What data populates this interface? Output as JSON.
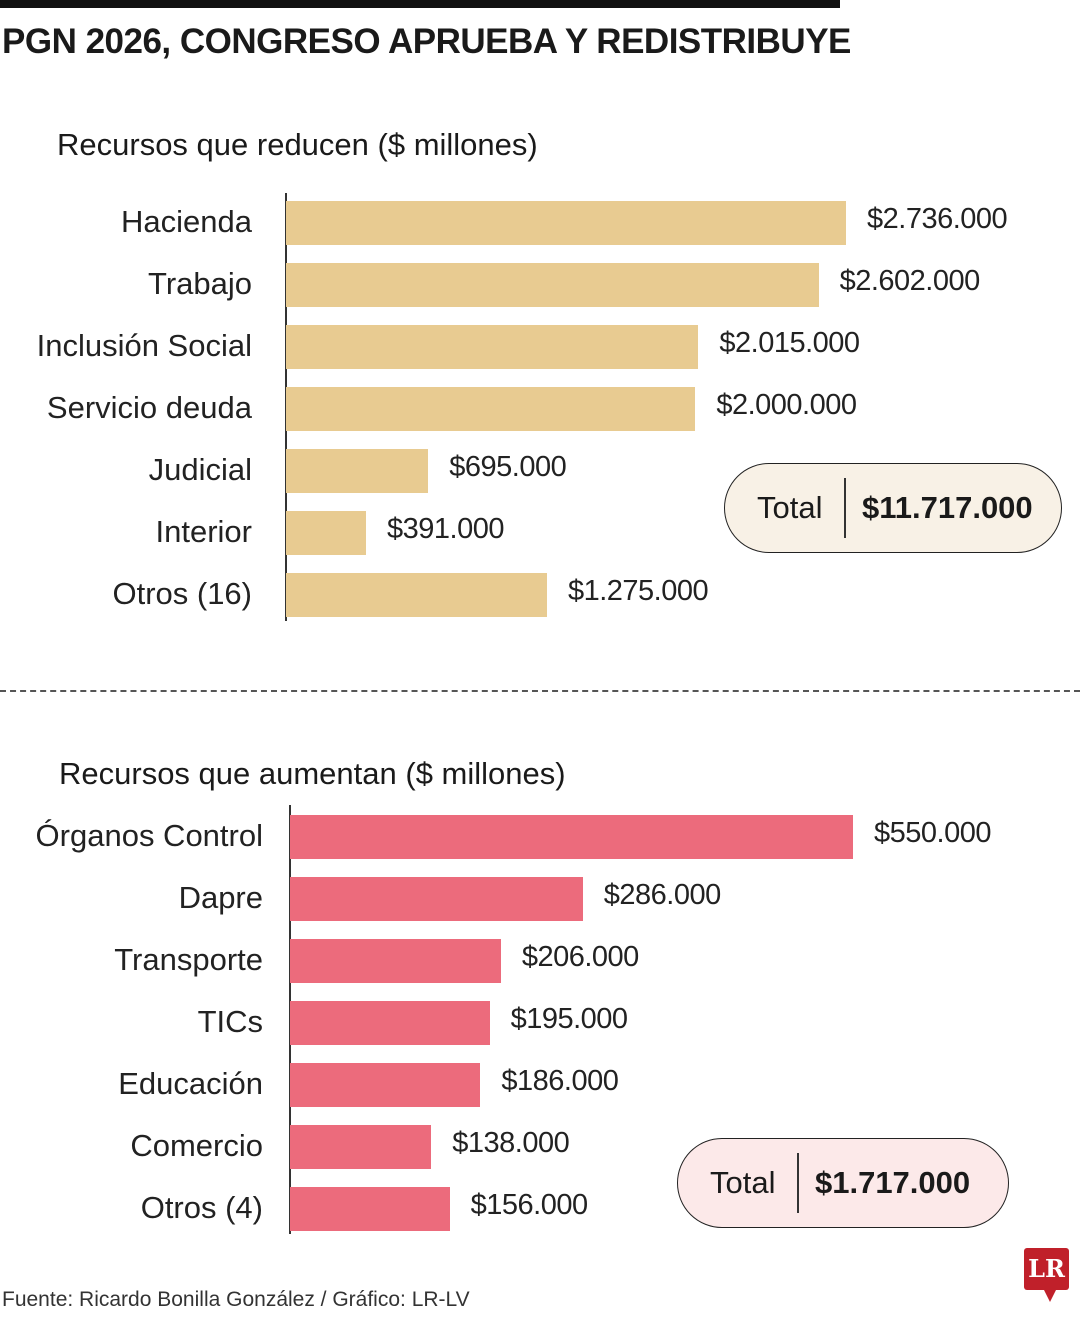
{
  "title": "PGN 2026, CONGRESO APRUEBA Y REDISTRIBUYE",
  "chart_data": [
    {
      "type": "bar",
      "orientation": "horizontal",
      "title": "Recursos que reducen ($ millones)",
      "categories": [
        "Hacienda",
        "Trabajo",
        "Inclusión Social",
        "Servicio deuda",
        "Judicial",
        "Interior",
        "Otros (16)"
      ],
      "values": [
        2736000,
        2602000,
        2015000,
        2000000,
        695000,
        391000,
        1275000
      ],
      "value_labels": [
        "$2.736.000",
        "$2.602.000",
        "$2.015.000",
        "$2.000.000",
        "$695.000",
        "$391.000",
        "$1.275.000"
      ],
      "color": "#e8cb91",
      "total_label": "Total",
      "total_value": "$11.717.000",
      "total_bg": "#f8f1e6"
    },
    {
      "type": "bar",
      "orientation": "horizontal",
      "title": "Recursos que aumentan ($ millones)",
      "categories": [
        "Órganos Control",
        "Dapre",
        "Transporte",
        "TICs",
        "Educación",
        "Comercio",
        "Otros (4)"
      ],
      "values": [
        550000,
        286000,
        206000,
        195000,
        186000,
        138000,
        156000
      ],
      "value_labels": [
        "$550.000",
        "$286.000",
        "$206.000",
        "$195.000",
        "$186.000",
        "$138.000",
        "$156.000"
      ],
      "color": "#ec6b7c",
      "total_label": "Total",
      "total_value": "$1.717.000",
      "total_bg": "#fce9e9"
    }
  ],
  "source": "Fuente: Ricardo Bonilla González / Gráfico: LR-LV",
  "logo": "LR"
}
